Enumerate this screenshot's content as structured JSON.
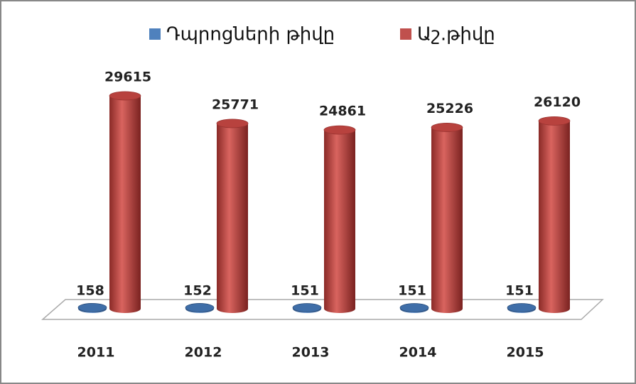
{
  "chart_data": {
    "type": "bar3d",
    "categories": [
      "2011",
      "2012",
      "2013",
      "2014",
      "2015"
    ],
    "series": [
      {
        "name": "Դպրոցների թիվը",
        "color": "#4f81bd",
        "values": [
          158,
          152,
          151,
          151,
          151
        ]
      },
      {
        "name": "Աշ.թիվը",
        "color": "#c0504d",
        "values": [
          29615,
          25771,
          24861,
          25226,
          26120
        ]
      }
    ],
    "legend": "top"
  }
}
